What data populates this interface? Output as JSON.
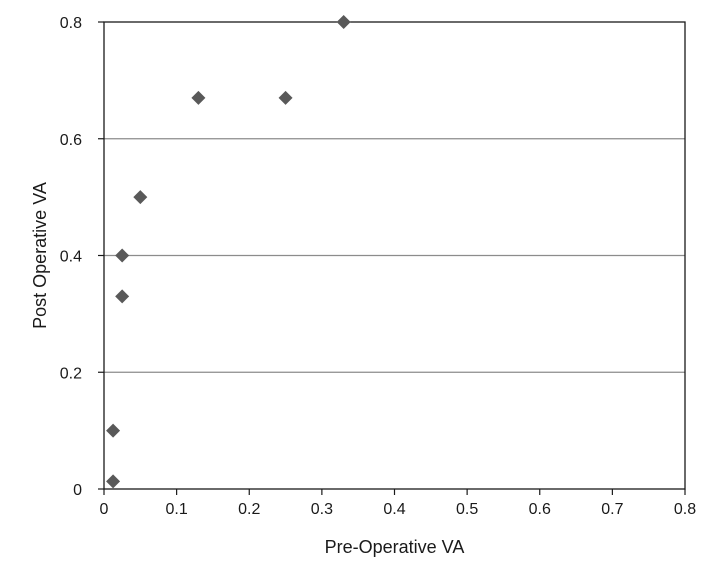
{
  "chart_data": {
    "type": "scatter",
    "title": "",
    "xlabel": "Pre-Operative VA",
    "ylabel": "Post Operative VA",
    "xlim": [
      0,
      0.8
    ],
    "ylim": [
      0,
      0.8
    ],
    "x_ticks": [
      "0",
      "0.1",
      "0.2",
      "0.3",
      "0.4",
      "0.5",
      "0.6",
      "0.7",
      "0.8"
    ],
    "y_ticks": [
      "0",
      "0.2",
      "0.4",
      "0.6",
      "0.8"
    ],
    "grid": "horizontal",
    "legend": "none",
    "marker": "diamond",
    "marker_color": "#595959",
    "series": [
      {
        "points": [
          {
            "x": 0.33,
            "y": 0.8
          },
          {
            "x": 0.13,
            "y": 0.67
          },
          {
            "x": 0.25,
            "y": 0.67
          },
          {
            "x": 0.05,
            "y": 0.5
          },
          {
            "x": 0.025,
            "y": 0.4
          },
          {
            "x": 0.025,
            "y": 0.33
          },
          {
            "x": 0.0125,
            "y": 0.1
          },
          {
            "x": 0.0125,
            "y": 0.013
          }
        ]
      }
    ]
  }
}
